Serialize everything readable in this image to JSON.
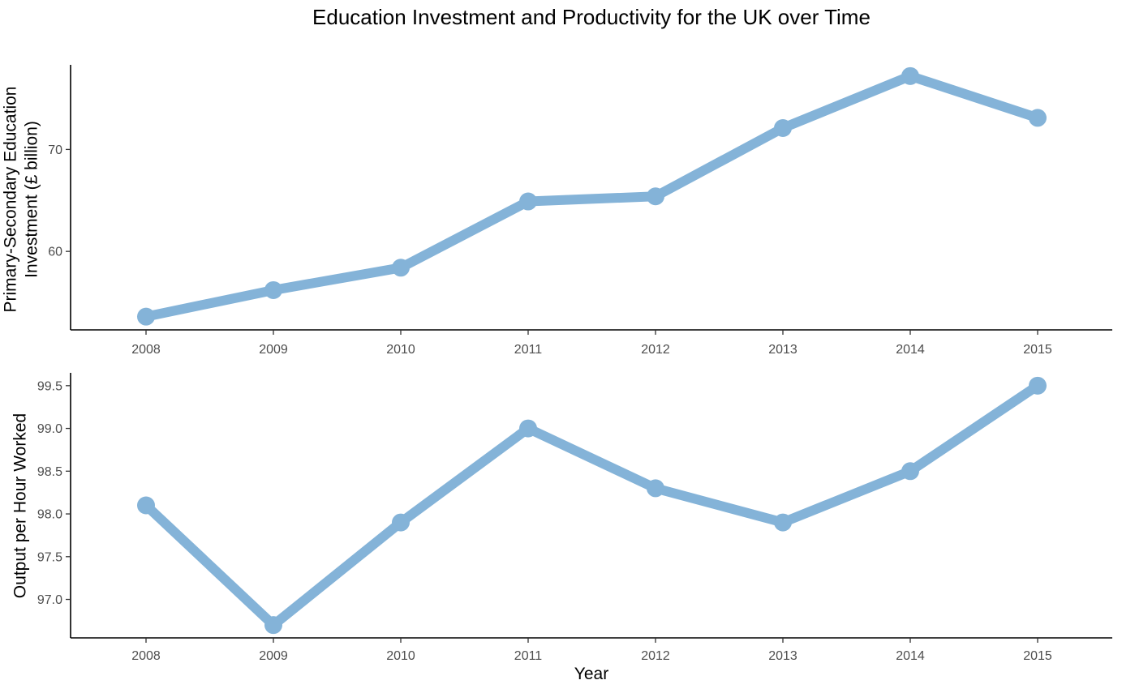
{
  "title": "Education Investment and Productivity for the UK over Time",
  "line_color": "#84B3D8",
  "chart_data": [
    {
      "type": "line",
      "title": "",
      "xlabel": "",
      "ylabel_lines": [
        "Primary-Secondary Education",
        "Investment (£ billion)"
      ],
      "x": [
        2008,
        2009,
        2010,
        2011,
        2012,
        2013,
        2014,
        2015
      ],
      "x_ticks": [
        "2008",
        "2009",
        "2010",
        "2011",
        "2012",
        "2013",
        "2014",
        "2015"
      ],
      "values": [
        53.6,
        56.2,
        58.4,
        64.9,
        65.4,
        72.1,
        77.2,
        73.1
      ],
      "y_ticks": [
        "60",
        "70"
      ],
      "ylim": [
        52.3,
        78.3
      ],
      "grid": false
    },
    {
      "type": "line",
      "title": "",
      "xlabel": "Year",
      "ylabel_lines": [
        "Output per Hour Worked"
      ],
      "x": [
        2008,
        2009,
        2010,
        2011,
        2012,
        2013,
        2014,
        2015
      ],
      "x_ticks": [
        "2008",
        "2009",
        "2010",
        "2011",
        "2012",
        "2013",
        "2014",
        "2015"
      ],
      "values": [
        98.1,
        96.7,
        97.9,
        99.0,
        98.3,
        97.9,
        98.5,
        99.5
      ],
      "y_ticks": [
        "97.0",
        "97.5",
        "98.0",
        "98.5",
        "99.0",
        "99.5"
      ],
      "ylim": [
        96.55,
        99.65
      ],
      "grid": false
    }
  ]
}
